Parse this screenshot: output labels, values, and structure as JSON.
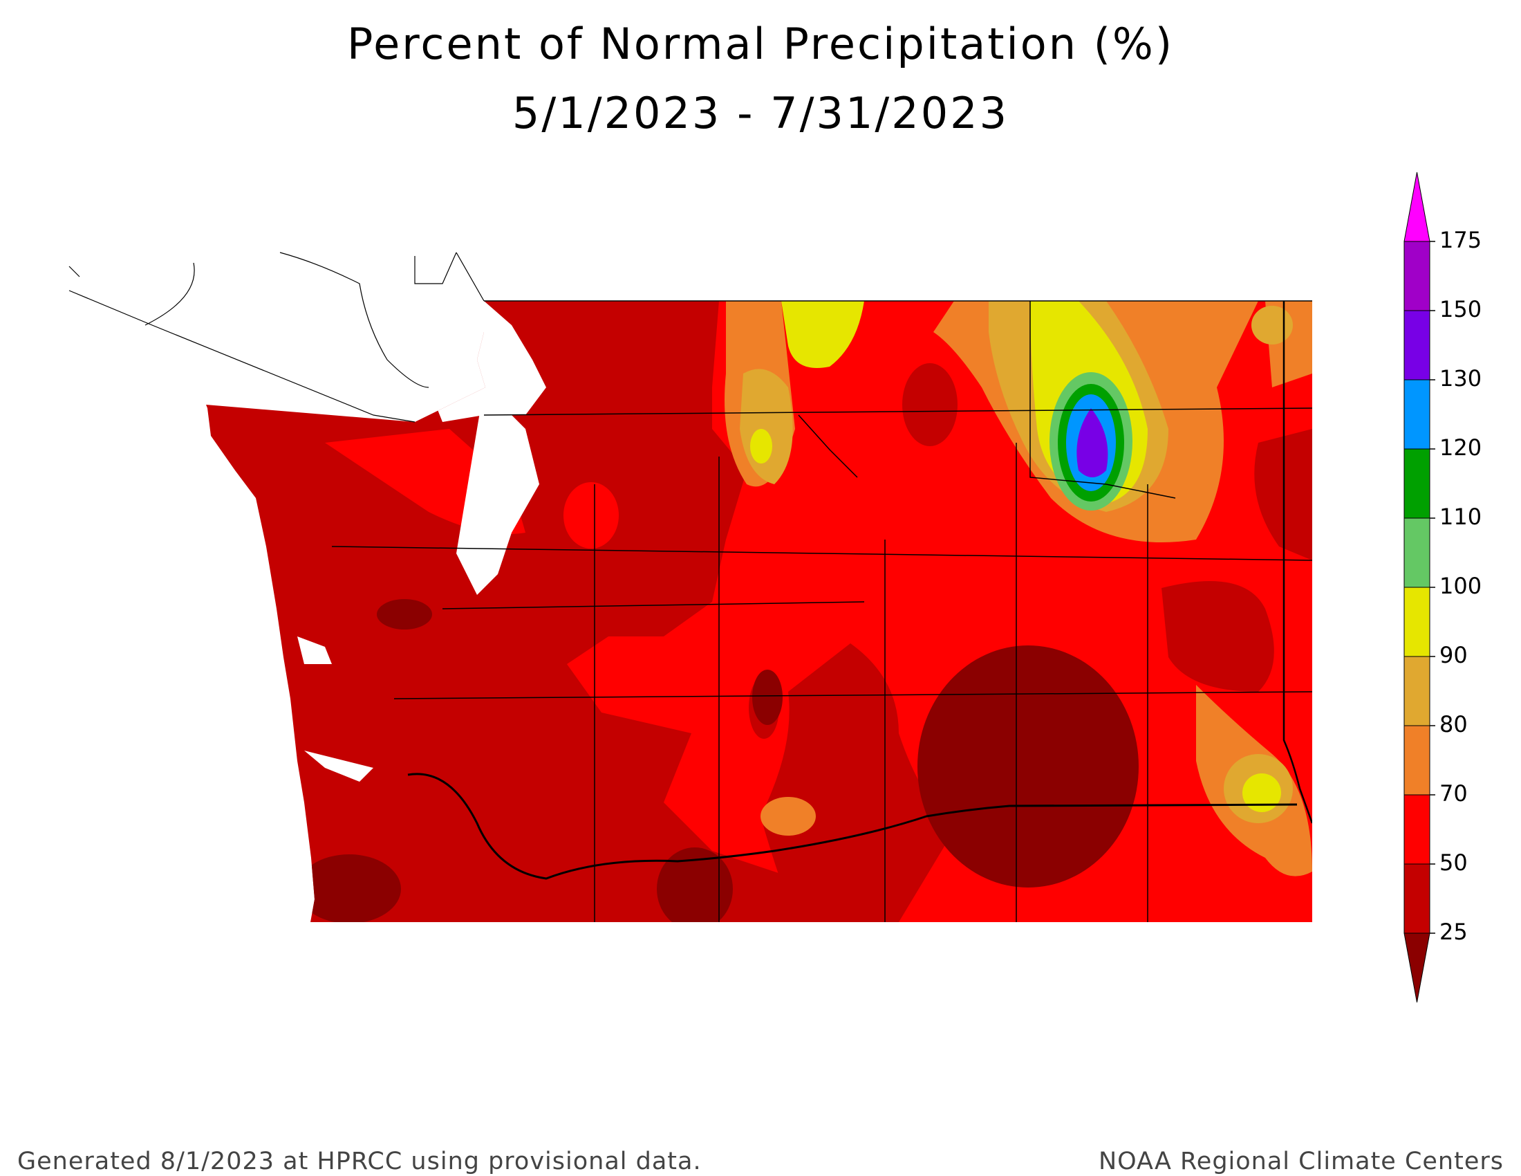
{
  "title": "Percent of Normal Precipitation (%)",
  "subtitle": "5/1/2023 - 7/31/2023",
  "legend": {
    "ticks": [
      25,
      50,
      70,
      80,
      90,
      100,
      110,
      120,
      130,
      150,
      175
    ],
    "colors": [
      "#8b0000",
      "#c40000",
      "#ff0000",
      "#f08028",
      "#e0a830",
      "#e6e600",
      "#64c864",
      "#00a000",
      "#0096ff",
      "#7800e6",
      "#a000c8",
      "#ff00ff"
    ]
  },
  "footer": {
    "left": "Generated 8/1/2023 at HPRCC using provisional data.",
    "right": "NOAA Regional Climate Centers"
  }
}
